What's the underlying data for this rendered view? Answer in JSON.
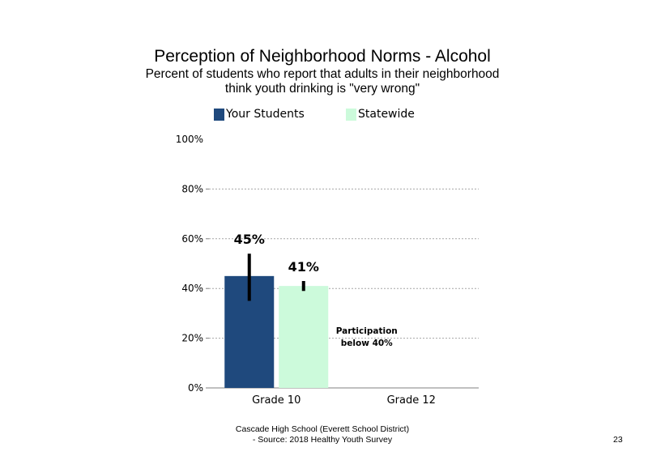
{
  "chart_data": {
    "type": "bar",
    "title": "Perception of Neighborhood Norms - Alcohol",
    "subtitle_lines": [
      "Percent of students who report that adults in their neighborhood",
      "think youth drinking is \"very wrong\""
    ],
    "categories": [
      "Grade 10",
      "Grade 12"
    ],
    "series": [
      {
        "name": "Your Students",
        "color": "#1f497d",
        "values": [
          45,
          null
        ],
        "data_labels": [
          "45%",
          ""
        ],
        "error_range": [
          [
            35,
            54
          ],
          null
        ]
      },
      {
        "name": "Statewide",
        "color": "#ccfadb",
        "values": [
          41,
          null
        ],
        "data_labels": [
          "41%",
          ""
        ],
        "error_range": [
          [
            39,
            43
          ],
          null
        ]
      }
    ],
    "ylim": [
      0,
      100
    ],
    "yticks": [
      0,
      20,
      40,
      60,
      80,
      100
    ],
    "ytick_labels": [
      "0%",
      "20%",
      "40%",
      "60%",
      "80%",
      "100%"
    ],
    "grid": true,
    "legend_position": "top",
    "annotations": [
      {
        "category": "Grade 12",
        "lines": [
          "Participation",
          "below 40%"
        ]
      }
    ]
  },
  "footer": {
    "line1": "Cascade High School (Everett School District)",
    "line2": "- Source: 2018 Healthy  Youth Survey",
    "page_number": "23"
  }
}
